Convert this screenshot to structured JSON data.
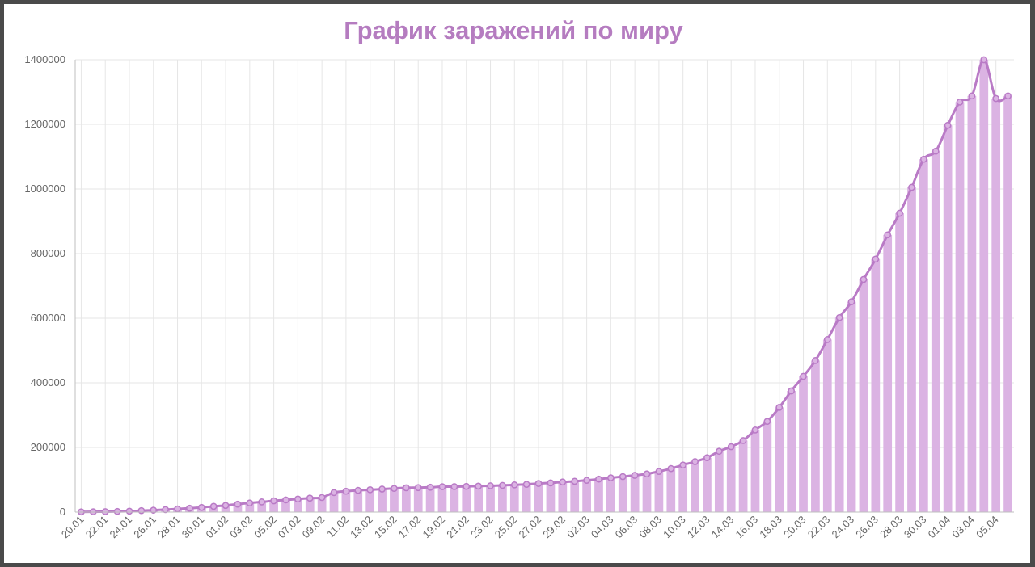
{
  "colors": {
    "title": "#b57cc0",
    "bar": "#dbb3e3",
    "line": "#b97ac6",
    "grid": "#e6e6e6",
    "axis": "#bfbfbf",
    "tick_text": "#666666"
  },
  "chart_data": {
    "type": "bar",
    "title": "График заражений по миру",
    "xlabel": "",
    "ylabel": "",
    "ylim": [
      0,
      1400000
    ],
    "yticks": [
      0,
      200000,
      400000,
      600000,
      800000,
      1000000,
      1200000,
      1400000
    ],
    "ytick_labels": [
      "0",
      "200000",
      "400000",
      "600000",
      "800000",
      "1000000",
      "1200000",
      "1400000"
    ],
    "grid": true,
    "legend": "none",
    "overlay": "line with circle markers through bar tops",
    "categories": [
      "20.01",
      "21.01",
      "22.01",
      "23.01",
      "24.01",
      "25.01",
      "26.01",
      "27.01",
      "28.01",
      "29.01",
      "30.01",
      "31.01",
      "01.02",
      "02.02",
      "03.02",
      "04.02",
      "05.02",
      "06.02",
      "07.02",
      "08.02",
      "09.02",
      "10.02",
      "11.02",
      "12.02",
      "13.02",
      "14.02",
      "15.02",
      "16.02",
      "17.02",
      "18.02",
      "19.02",
      "20.02",
      "21.02",
      "22.02",
      "23.02",
      "24.02",
      "25.02",
      "26.02",
      "27.02",
      "28.02",
      "29.02",
      "01.03",
      "02.03",
      "03.03",
      "04.03",
      "05.03",
      "06.03",
      "07.03",
      "08.03",
      "09.03",
      "10.03",
      "11.03",
      "12.03",
      "13.03",
      "14.03",
      "15.03",
      "16.03",
      "17.03",
      "18.03",
      "19.03",
      "20.03",
      "21.03",
      "22.03",
      "23.03",
      "24.03",
      "25.03",
      "26.03",
      "27.03",
      "28.03",
      "29.03",
      "30.03",
      "31.03",
      "01.04",
      "02.04",
      "03.04",
      "04.04",
      "05.04",
      "06.04"
    ],
    "labeled_categories": [
      "20.01",
      "22.01",
      "24.01",
      "26.01",
      "28.01",
      "30.01",
      "01.02",
      "03.02",
      "05.02",
      "07.02",
      "09.02",
      "11.02",
      "13.02",
      "15.02",
      "17.02",
      "19.02",
      "21.02",
      "23.02",
      "25.02",
      "27.02",
      "29.02",
      "02.03",
      "04.03",
      "06.03",
      "08.03",
      "10.03",
      "12.03",
      "14.03",
      "16.03",
      "18.03",
      "20.03",
      "22.03",
      "24.03",
      "26.03",
      "28.03",
      "30.03",
      "01.04",
      "03.04",
      "05.04"
    ],
    "values": [
      600,
      1000,
      1400,
      2000,
      2900,
      4500,
      6000,
      7800,
      9800,
      11900,
      14400,
      17800,
      20600,
      24500,
      28300,
      31500,
      34900,
      37600,
      40500,
      43100,
      45200,
      60400,
      64500,
      67100,
      69100,
      71200,
      73300,
      75200,
      75700,
      76800,
      78600,
      78900,
      79500,
      80400,
      81400,
      82700,
      84200,
      85900,
      88500,
      90300,
      93100,
      95300,
      98400,
      102000,
      106000,
      109900,
      113700,
      118200,
      125900,
      134600,
      145800,
      156200,
      168300,
      188200,
      202400,
      221400,
      254000,
      280700,
      324000,
      375000,
      420000,
      469000,
      534000,
      602000,
      651000,
      720000,
      783000,
      858000,
      925000,
      1005000,
      1092000,
      1117000,
      1197000,
      1269000,
      1288000,
      1400000,
      1280000,
      1288000
    ],
    "values_note": "daily cumulative totals, same series drawn as bars and as line"
  }
}
